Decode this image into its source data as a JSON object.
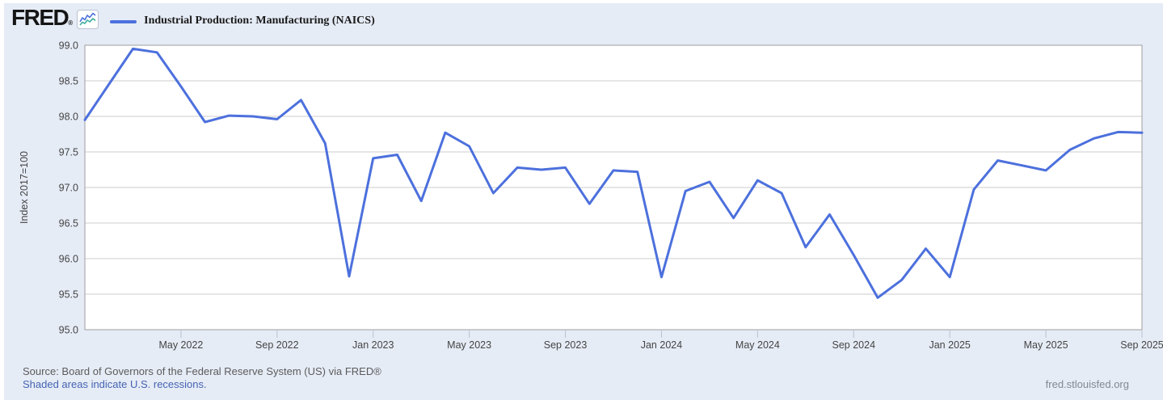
{
  "header": {
    "logo": "FRED",
    "logo_mark": "®",
    "legend": {
      "label": "Industrial Production: Manufacturing (NAICS)",
      "line_color": "#4c70dd"
    }
  },
  "chart_data": {
    "type": "line",
    "title": "Industrial Production: Manufacturing (NAICS)",
    "ylabel": "Index 2017=100",
    "ylim": [
      95.0,
      99.0
    ],
    "yticks": [
      95.0,
      95.5,
      96.0,
      96.5,
      97.0,
      97.5,
      98.0,
      98.5,
      99.0
    ],
    "grid": true,
    "legend_position": "top-left",
    "x": [
      "Jan 2022",
      "Feb 2022",
      "Mar 2022",
      "Apr 2022",
      "May 2022",
      "Jun 2022",
      "Jul 2022",
      "Aug 2022",
      "Sep 2022",
      "Oct 2022",
      "Nov 2022",
      "Dec 2022",
      "Jan 2023",
      "Feb 2023",
      "Mar 2023",
      "Apr 2023",
      "May 2023",
      "Jun 2023",
      "Jul 2023",
      "Aug 2023",
      "Sep 2023",
      "Oct 2023",
      "Nov 2023",
      "Dec 2023",
      "Jan 2024",
      "Feb 2024",
      "Mar 2024",
      "Apr 2024",
      "May 2024",
      "Jun 2024",
      "Jul 2024",
      "Aug 2024",
      "Sep 2024",
      "Oct 2024",
      "Nov 2024",
      "Dec 2024",
      "Jan 2025",
      "Feb 2025",
      "Mar 2025",
      "Apr 2025",
      "May 2025",
      "Jun 2025",
      "Jul 2025",
      "Aug 2025",
      "Sep 2025"
    ],
    "xticks": [
      {
        "label": "May 2022",
        "index": 4
      },
      {
        "label": "Sep 2022",
        "index": 8
      },
      {
        "label": "Jan 2023",
        "index": 12
      },
      {
        "label": "May 2023",
        "index": 16
      },
      {
        "label": "Sep 2023",
        "index": 20
      },
      {
        "label": "Jan 2024",
        "index": 24
      },
      {
        "label": "May 2024",
        "index": 28
      },
      {
        "label": "Sep 2024",
        "index": 32
      },
      {
        "label": "Jan 2025",
        "index": 36
      },
      {
        "label": "May 2025",
        "index": 40
      },
      {
        "label": "Sep 2025",
        "index": 44
      }
    ],
    "series": [
      {
        "name": "Industrial Production: Manufacturing (NAICS)",
        "color": "#4c70dd",
        "values": [
          97.95,
          98.45,
          98.95,
          98.9,
          98.42,
          97.92,
          98.01,
          98.0,
          97.96,
          98.23,
          97.62,
          95.75,
          97.41,
          97.46,
          96.81,
          97.77,
          97.58,
          96.92,
          97.28,
          97.25,
          97.28,
          96.77,
          97.24,
          97.22,
          95.74,
          96.95,
          97.08,
          96.57,
          97.1,
          96.92,
          96.16,
          96.62,
          96.05,
          95.45,
          95.7,
          96.14,
          95.74,
          96.97,
          97.38,
          97.31,
          97.24,
          97.53,
          97.69,
          97.78,
          97.77
        ]
      }
    ]
  },
  "footer": {
    "source_line": "Source: Board of Governors of the Federal Reserve System (US) via FRED®",
    "recession_note": "Shaded areas indicate U.S. recessions.",
    "site_link": "fred.stlouisfed.org"
  },
  "colors": {
    "page_bg": "#e6ecf6",
    "plot_bg": "#ffffff",
    "grid": "#cccccc",
    "border": "#9e9e9e",
    "tick": "#b9c1d0",
    "axis_text": "#444444",
    "line": "#4c70dd",
    "link": "#4563b2"
  }
}
